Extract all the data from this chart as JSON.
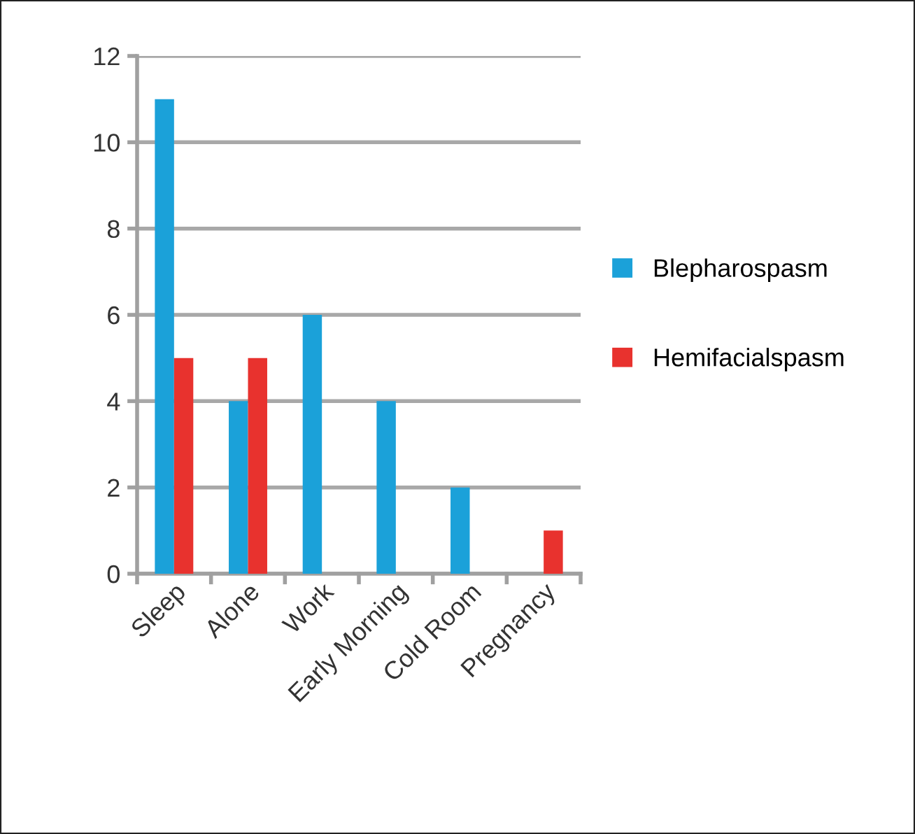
{
  "chart_data": {
    "type": "bar",
    "categories": [
      "Sleep",
      "Alone",
      "Work",
      "Early Morning",
      "Cold Room",
      "Pregnancy"
    ],
    "series": [
      {
        "name": "Blepharospasm",
        "color": "#1ba1d9",
        "values": [
          11,
          4,
          6,
          4,
          2,
          0
        ]
      },
      {
        "name": "Hemifacialspasm",
        "color": "#e8322e",
        "values": [
          5,
          5,
          0,
          0,
          0,
          1
        ]
      }
    ],
    "ylim": [
      0,
      12
    ],
    "yticks": [
      0,
      2,
      4,
      6,
      8,
      10,
      12
    ],
    "grid": "y",
    "legend": "right"
  }
}
